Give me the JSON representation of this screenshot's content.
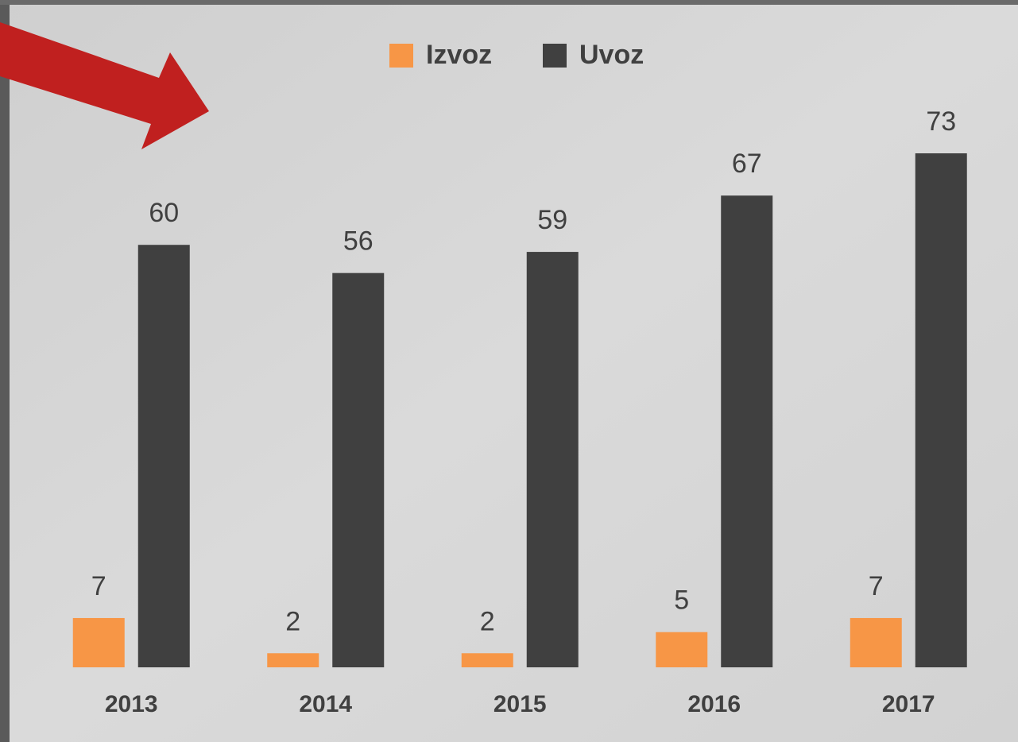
{
  "chart_data": {
    "type": "bar",
    "categories": [
      "2013",
      "2014",
      "2015",
      "2016",
      "2017"
    ],
    "series": [
      {
        "name": "Izvoz",
        "color": "#f79646",
        "values": [
          7,
          2,
          2,
          5,
          7
        ]
      },
      {
        "name": "Uvoz",
        "color": "#404040",
        "values": [
          60,
          56,
          59,
          67,
          73
        ]
      }
    ],
    "legend": "top"
  }
}
